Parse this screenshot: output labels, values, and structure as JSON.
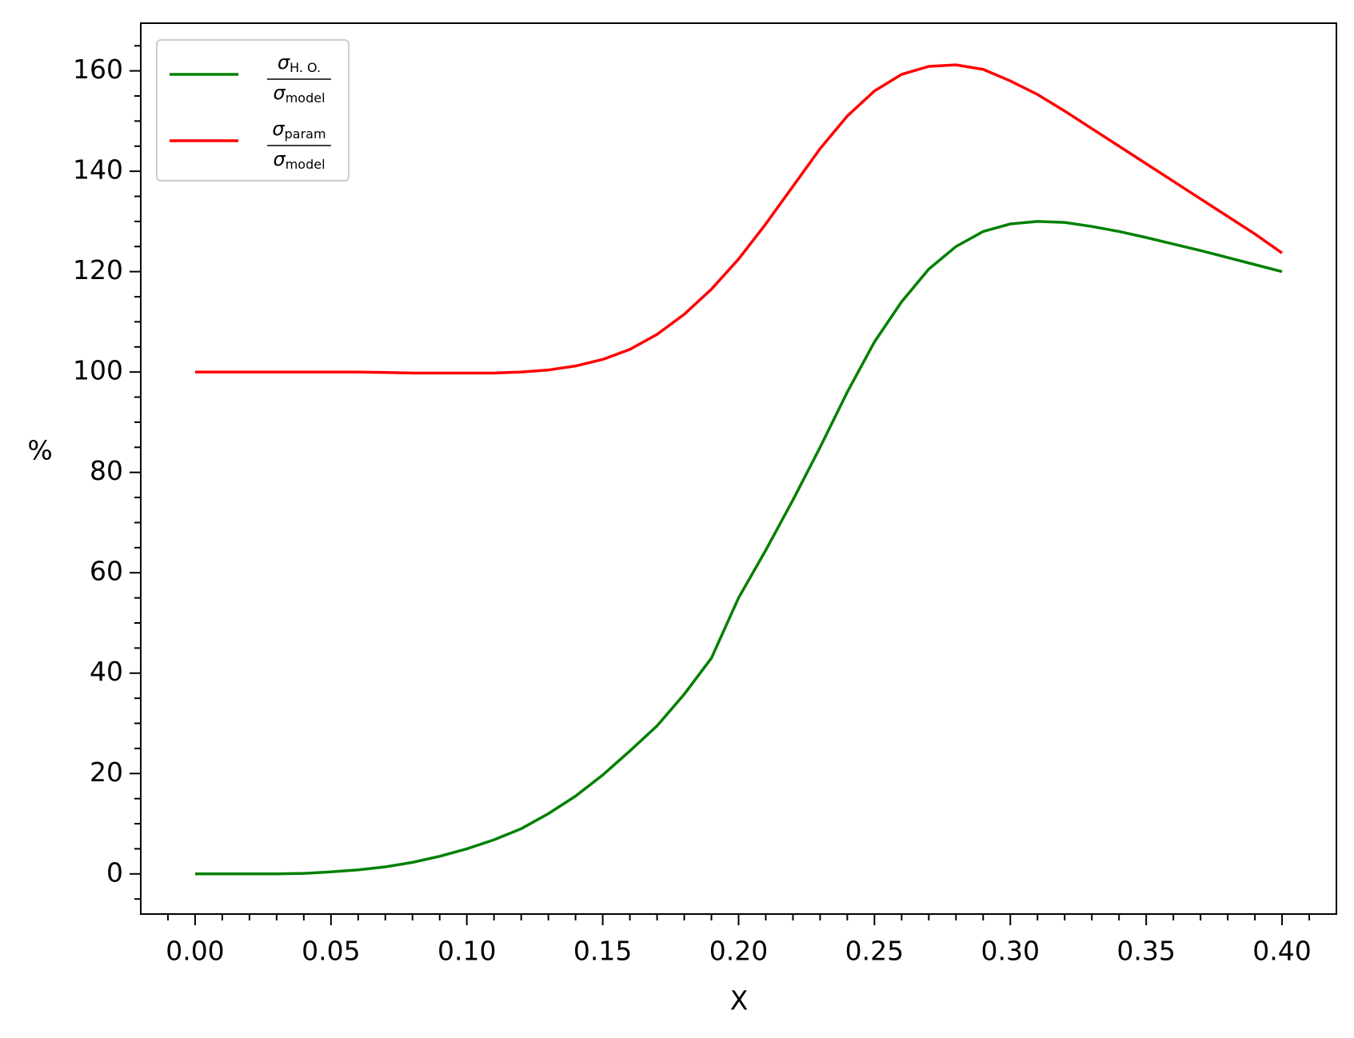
{
  "chart_data": {
    "type": "line",
    "xlabel": "X",
    "ylabel": "%",
    "x": [
      0,
      0.01,
      0.02,
      0.03,
      0.04,
      0.05,
      0.06,
      0.07,
      0.08,
      0.09,
      0.1,
      0.11,
      0.12,
      0.13,
      0.14,
      0.15,
      0.16,
      0.17,
      0.18,
      0.19,
      0.2,
      0.21,
      0.22,
      0.23,
      0.24,
      0.25,
      0.26,
      0.27,
      0.28,
      0.29,
      0.3,
      0.31,
      0.32,
      0.33,
      0.34,
      0.35,
      0.36,
      0.37,
      0.38,
      0.39,
      0.4
    ],
    "series": [
      {
        "name": {
          "numerator": [
            "σ",
            "H. O."
          ],
          "denominator": [
            "σ",
            "model"
          ]
        },
        "color": "#008000",
        "values": [
          0,
          0,
          0,
          0,
          0.1,
          0.4,
          0.8,
          1.4,
          2.3,
          3.5,
          5,
          6.8,
          9,
          12,
          15.5,
          19.7,
          24.5,
          29.5,
          35.8,
          43,
          55,
          64.5,
          74.5,
          85,
          96,
          106,
          114,
          120.5,
          125,
          128,
          129.5,
          130,
          129.8,
          129,
          128,
          126.8,
          125.5,
          124.2,
          122.8,
          121.4,
          120
        ]
      },
      {
        "name": {
          "numerator": [
            "σ",
            "param"
          ],
          "denominator": [
            "σ",
            "model"
          ]
        },
        "color": "#ff0000",
        "values": [
          100,
          100,
          100,
          100,
          100,
          100,
          100,
          99.9,
          99.8,
          99.8,
          99.8,
          99.8,
          100,
          100.4,
          101.2,
          102.5,
          104.5,
          107.5,
          111.5,
          116.5,
          122.5,
          129.5,
          137,
          144.5,
          151,
          156,
          159.3,
          160.9,
          161.2,
          160.3,
          158,
          155.3,
          152,
          148.5,
          145,
          141.5,
          138,
          134.5,
          131,
          127.5,
          123.7
        ]
      }
    ],
    "xlim": [
      -0.02,
      0.42
    ],
    "ylim": [
      -8,
      169.5
    ],
    "xticks": [
      {
        "value": 0,
        "label": "0.00"
      },
      {
        "value": 0.05,
        "label": "0.05"
      },
      {
        "value": 0.1,
        "label": "0.10"
      },
      {
        "value": 0.15,
        "label": "0.15"
      },
      {
        "value": 0.2,
        "label": "0.20"
      },
      {
        "value": 0.25,
        "label": "0.25"
      },
      {
        "value": 0.3,
        "label": "0.30"
      },
      {
        "value": 0.35,
        "label": "0.35"
      },
      {
        "value": 0.4,
        "label": "0.40"
      }
    ],
    "yticks": [
      0,
      20,
      40,
      60,
      80,
      100,
      120,
      140,
      160
    ],
    "xminorticks": [
      -0.01,
      0.01,
      0.02,
      0.03,
      0.04,
      0.06,
      0.07,
      0.08,
      0.09,
      0.11,
      0.12,
      0.13,
      0.14,
      0.16,
      0.17,
      0.18,
      0.19,
      0.21,
      0.22,
      0.23,
      0.24,
      0.26,
      0.27,
      0.28,
      0.29,
      0.31,
      0.32,
      0.33,
      0.34,
      0.36,
      0.37,
      0.38,
      0.39,
      0.41
    ],
    "yminorticks": [
      -5,
      5,
      10,
      15,
      25,
      30,
      35,
      45,
      50,
      55,
      65,
      70,
      75,
      85,
      90,
      95,
      105,
      110,
      115,
      125,
      130,
      135,
      145,
      150,
      155,
      165
    ],
    "grid": false,
    "legend": "upper left"
  }
}
